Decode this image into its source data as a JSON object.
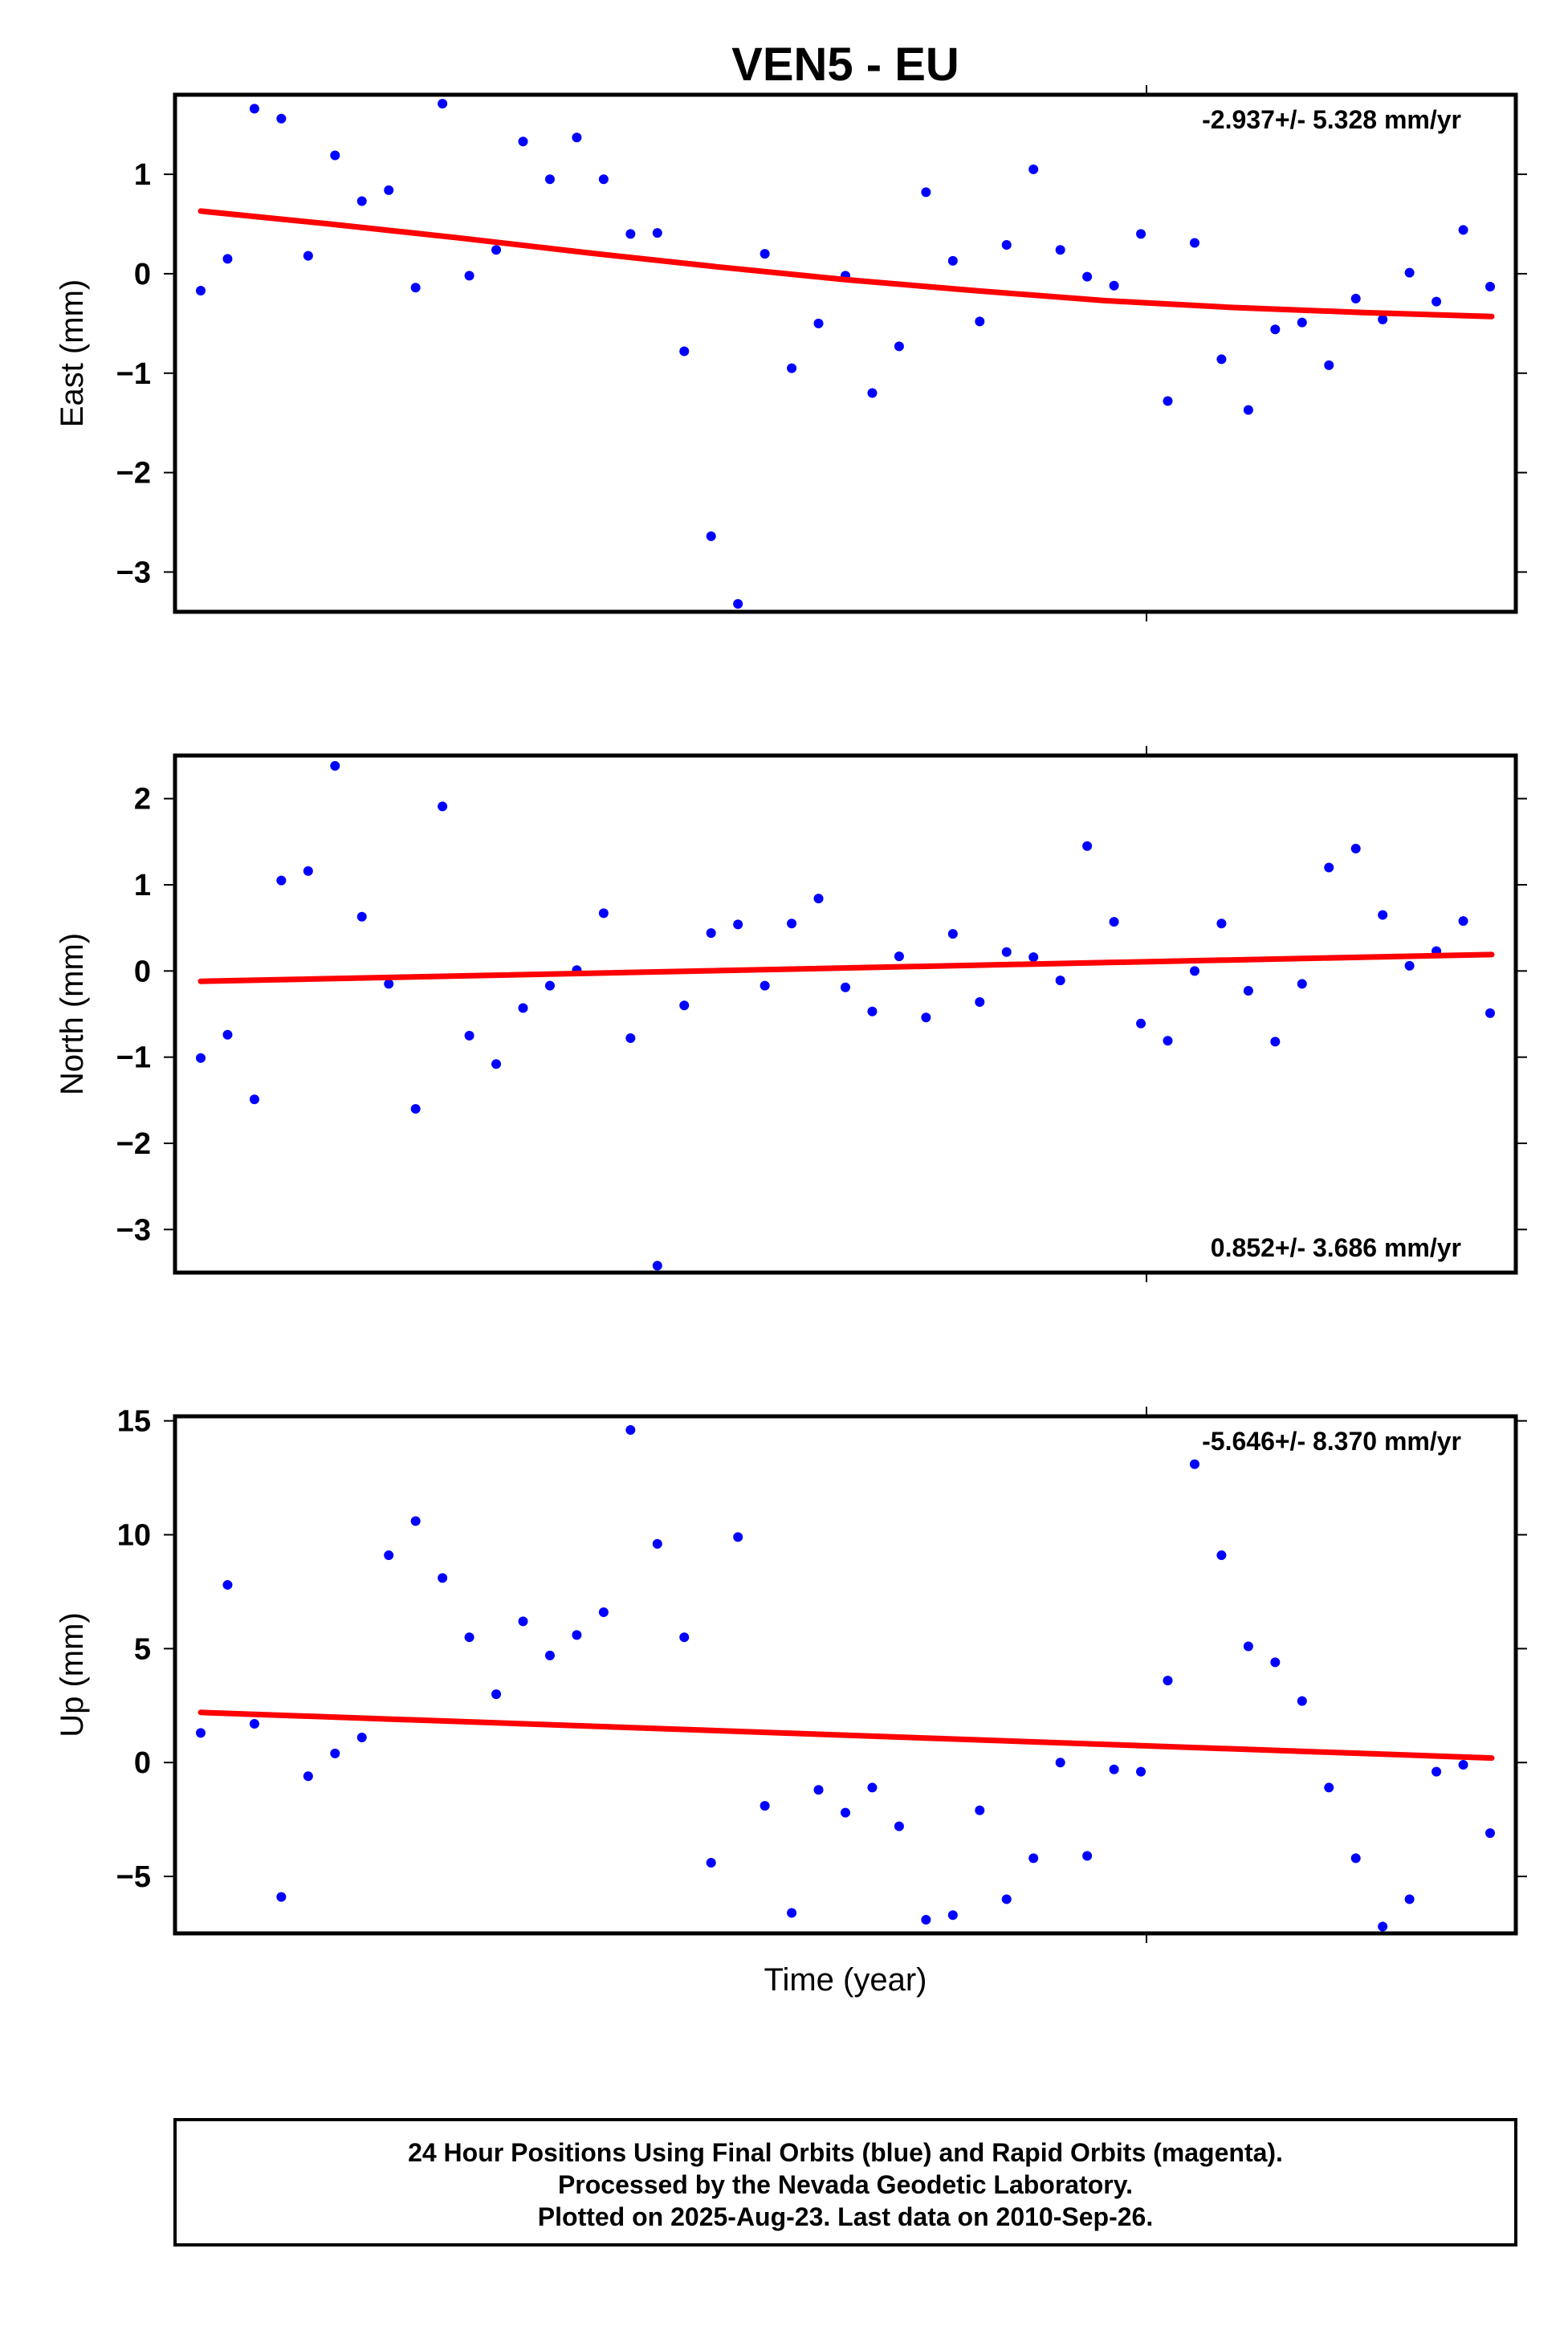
{
  "title": "VEN5 - EU",
  "xlabel": "Time (year)",
  "footer": {
    "line1": "24 Hour Positions Using Final Orbits (blue) and Rapid Orbits (magenta).",
    "line2": "Processed by the Nevada Geodetic Laboratory.",
    "line3": "Plotted on 2025-Aug-23. Last data on 2010-Sep-26."
  },
  "colors": {
    "points": "#0000ff",
    "fit": "#ff0000",
    "frame": "#000000"
  },
  "chart_data": [
    {
      "type": "scatter",
      "ylabel": "East (mm)",
      "rate": "-2.937+/- 5.328 mm/yr",
      "rate_position": "top-right",
      "ylim": [
        -3.4,
        1.8
      ],
      "yticks": [
        1,
        0,
        -1,
        -2,
        -3
      ],
      "ytick_labels": [
        "1",
        "0",
        "−1",
        "−2",
        "−3"
      ],
      "xlim": [
        0,
        1
      ],
      "values": [
        -0.17,
        0.15,
        1.66,
        1.56,
        0.18,
        1.19,
        0.73,
        0.84,
        -0.14,
        1.71,
        -0.02,
        0.24,
        1.33,
        0.95,
        1.37,
        0.95,
        0.4,
        0.41,
        -0.78,
        -2.64,
        -3.32,
        0.2,
        -0.95,
        -0.5,
        -0.02,
        -1.2,
        -0.73,
        0.82,
        0.13,
        -0.48,
        0.29,
        1.05,
        0.24,
        -0.03,
        -0.12,
        0.4,
        -1.28,
        0.31,
        -0.86,
        -1.37,
        -0.56,
        -0.49,
        -0.92,
        -0.25,
        -0.46,
        0.01,
        -0.28,
        0.44,
        -0.13
      ],
      "fit": {
        "type": "curve",
        "y": [
          0.63,
          0.5,
          0.36,
          0.21,
          0.07,
          -0.06,
          -0.17,
          -0.27,
          -0.34,
          -0.39,
          -0.43
        ]
      }
    },
    {
      "type": "scatter",
      "ylabel": "North (mm)",
      "rate": "0.852+/- 3.686 mm/yr",
      "rate_position": "bottom-right",
      "ylim": [
        -3.5,
        2.5
      ],
      "yticks": [
        2,
        1,
        0,
        -1,
        -2,
        -3
      ],
      "ytick_labels": [
        "2",
        "1",
        "0",
        "−1",
        "−2",
        "−3"
      ],
      "xlim": [
        0,
        1
      ],
      "values": [
        -1.01,
        -0.74,
        -1.49,
        1.05,
        1.16,
        2.38,
        0.63,
        -0.15,
        -1.6,
        1.91,
        -0.75,
        -1.08,
        -0.43,
        -0.17,
        0.01,
        0.67,
        -0.78,
        -3.42,
        -0.4,
        0.44,
        0.54,
        -0.17,
        0.55,
        0.84,
        -0.19,
        -0.47,
        0.17,
        -0.54,
        0.43,
        -0.36,
        0.22,
        0.16,
        -0.11,
        1.45,
        0.57,
        -0.61,
        -0.81,
        0.0,
        0.55,
        -0.23,
        -0.82,
        -0.15,
        1.2,
        1.42,
        0.65,
        0.06,
        0.23,
        0.58,
        -0.49
      ],
      "fit": {
        "type": "line",
        "y": [
          -0.12,
          0.19
        ]
      }
    },
    {
      "type": "scatter",
      "ylabel": "Up (mm)",
      "rate": "-5.646+/- 8.370 mm/yr",
      "rate_position": "top-right",
      "ylim": [
        -7.5,
        15.2
      ],
      "yticks": [
        15,
        10,
        5,
        0,
        -5
      ],
      "ytick_labels": [
        "15",
        "10",
        "5",
        "0",
        "−5"
      ],
      "xlim": [
        0,
        1
      ],
      "values": [
        1.3,
        7.8,
        1.7,
        -5.9,
        -0.6,
        0.4,
        1.1,
        9.1,
        10.6,
        8.1,
        5.5,
        3.0,
        6.2,
        4.7,
        5.6,
        6.6,
        14.6,
        9.6,
        5.5,
        -4.4,
        9.9,
        -1.9,
        -6.6,
        -1.2,
        -2.2,
        -1.1,
        -2.8,
        -6.9,
        -6.7,
        -2.1,
        -6.0,
        -4.2,
        0.0,
        -4.1,
        -0.3,
        -0.4,
        3.6,
        13.1,
        9.1,
        5.1,
        4.4,
        2.7,
        -1.1,
        -4.2,
        -7.2,
        -6.0,
        -0.4,
        -0.1,
        -3.1
      ],
      "fit": {
        "type": "line",
        "y": [
          2.2,
          0.2
        ]
      }
    }
  ]
}
